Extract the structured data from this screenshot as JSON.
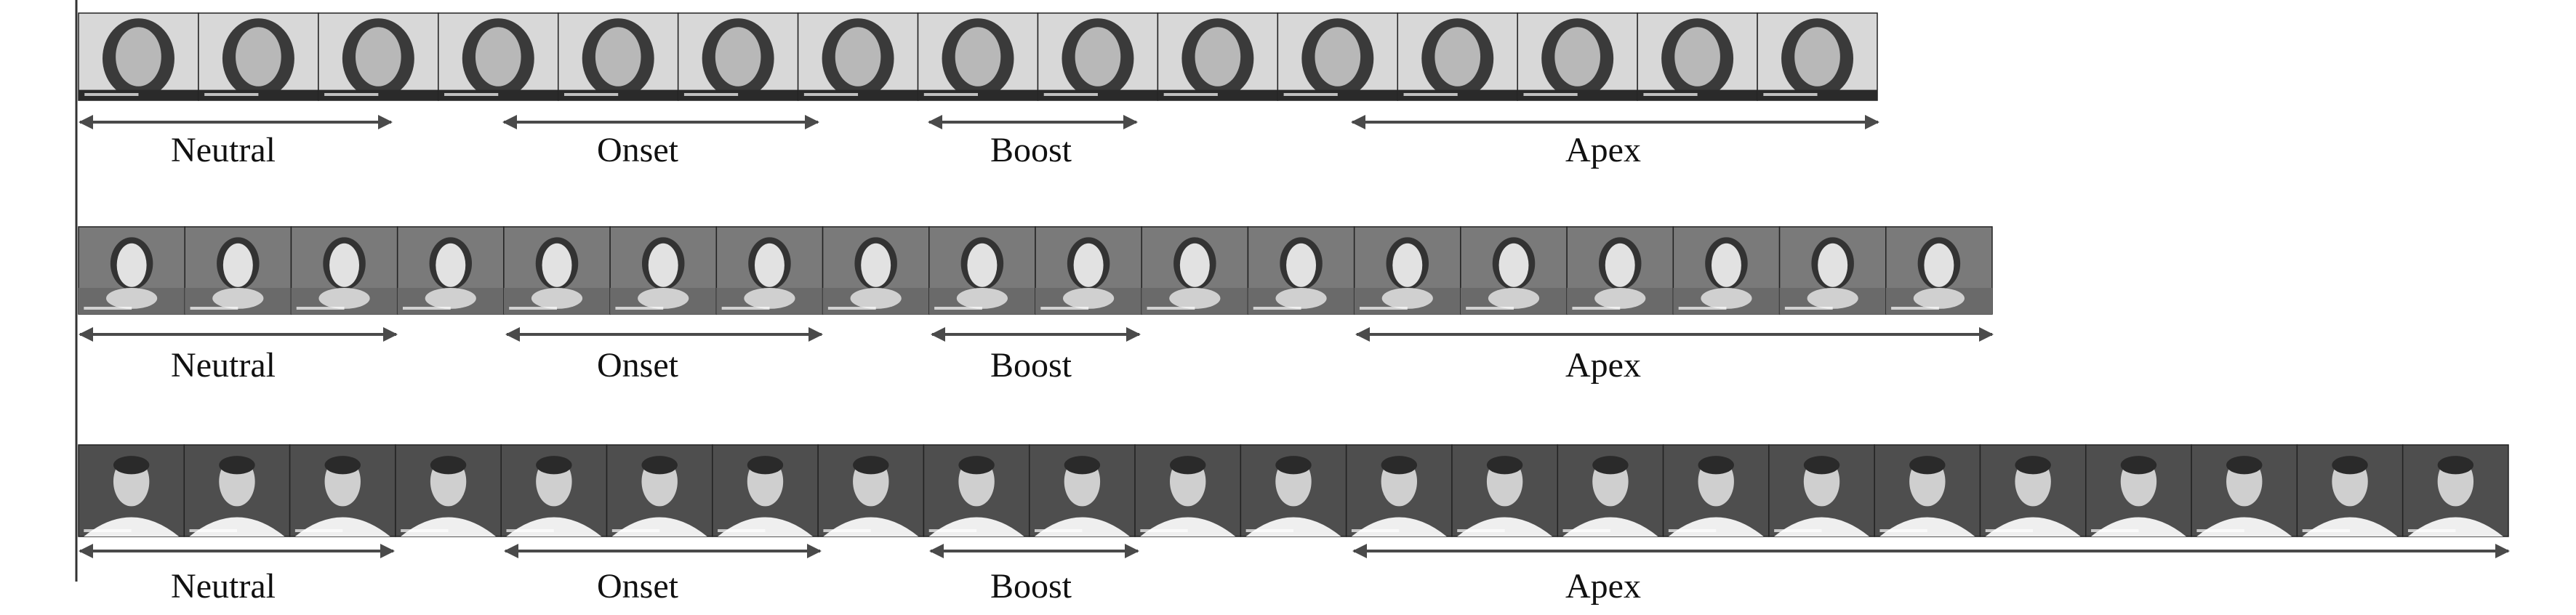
{
  "rows": [
    {
      "frame_count": 15,
      "frames_per_phase_group": [
        3,
        1,
        3,
        1,
        2,
        2,
        5
      ],
      "phases": [
        {
          "label": "Neutral"
        },
        {
          "label": "Onset"
        },
        {
          "label": "Boost"
        },
        {
          "label": "Apex"
        }
      ]
    },
    {
      "frame_count": 18,
      "phases": [
        {
          "label": "Neutral"
        },
        {
          "label": "Onset"
        },
        {
          "label": "Boost"
        },
        {
          "label": "Apex"
        }
      ]
    },
    {
      "frame_count": 23,
      "phases": [
        {
          "label": "Neutral"
        },
        {
          "label": "Onset"
        },
        {
          "label": "Boost"
        },
        {
          "label": "Apex"
        }
      ]
    }
  ],
  "colors": {
    "arrow": "#4a4a4a",
    "row1_background": "#d8d8d8",
    "row2_background": "#7a7a7a",
    "row3_background": "#4e4e4e"
  }
}
